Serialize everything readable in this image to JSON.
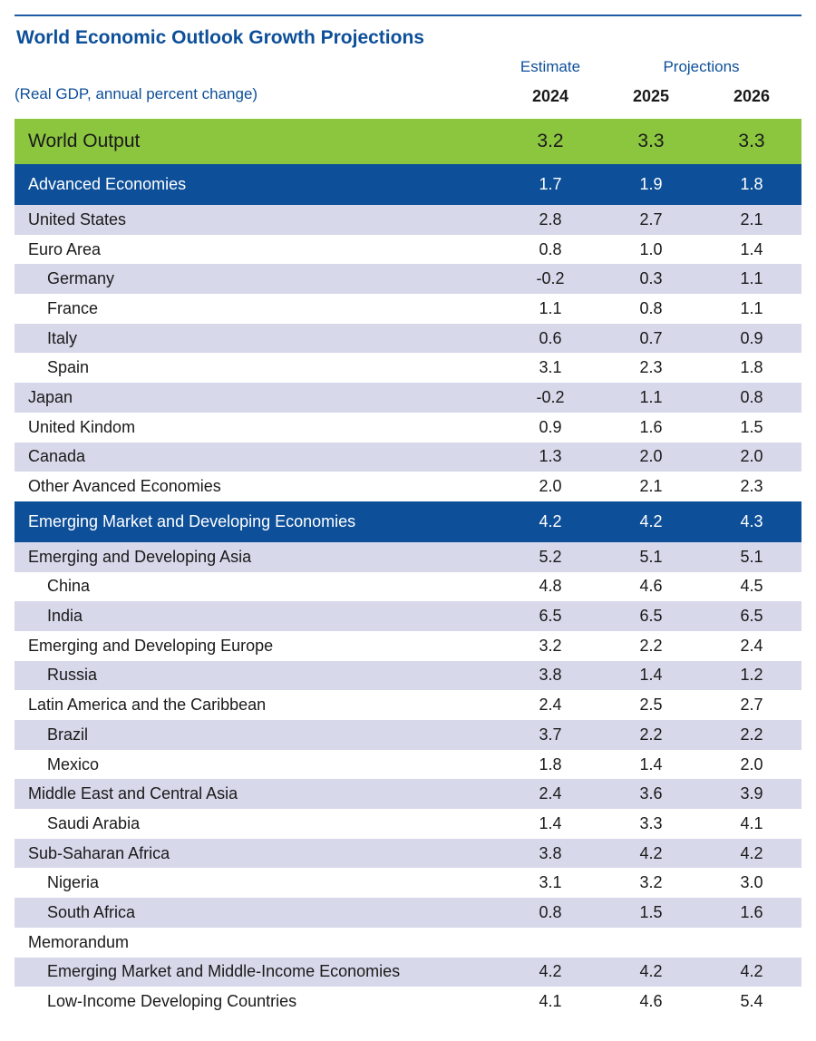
{
  "title": "World Economic Outlook Growth Projections",
  "subtitle": "(Real GDP, annual percent change)",
  "header": {
    "estimate_label": "Estimate",
    "projections_label": "Projections",
    "years": [
      "2024",
      "2025",
      "2026"
    ]
  },
  "rows": [
    {
      "name": "World Output",
      "kind": "world",
      "values": [
        "3.2",
        "3.3",
        "3.3"
      ]
    },
    {
      "name": "Advanced Economies",
      "kind": "group",
      "values": [
        "1.7",
        "1.9",
        "1.8"
      ]
    },
    {
      "name": "United States",
      "kind": "alt",
      "indent": 0,
      "values": [
        "2.8",
        "2.7",
        "2.1"
      ]
    },
    {
      "name": "Euro Area",
      "kind": "plain",
      "indent": 0,
      "values": [
        "0.8",
        "1.0",
        "1.4"
      ]
    },
    {
      "name": "Germany",
      "kind": "alt",
      "indent": 1,
      "values": [
        "-0.2",
        "0.3",
        "1.1"
      ]
    },
    {
      "name": "France",
      "kind": "plain",
      "indent": 1,
      "values": [
        "1.1",
        "0.8",
        "1.1"
      ]
    },
    {
      "name": "Italy",
      "kind": "alt",
      "indent": 1,
      "values": [
        "0.6",
        "0.7",
        "0.9"
      ]
    },
    {
      "name": "Spain",
      "kind": "plain",
      "indent": 1,
      "values": [
        "3.1",
        "2.3",
        "1.8"
      ]
    },
    {
      "name": "Japan",
      "kind": "alt",
      "indent": 0,
      "values": [
        "-0.2",
        "1.1",
        "0.8"
      ]
    },
    {
      "name": "United Kindom",
      "kind": "plain",
      "indent": 0,
      "values": [
        "0.9",
        "1.6",
        "1.5"
      ]
    },
    {
      "name": "Canada",
      "kind": "alt",
      "indent": 0,
      "values": [
        "1.3",
        "2.0",
        "2.0"
      ]
    },
    {
      "name": "Other Avanced Economies",
      "kind": "plain",
      "indent": 0,
      "values": [
        "2.0",
        "2.1",
        "2.3"
      ]
    },
    {
      "name": "Emerging Market and Developing Economies",
      "kind": "group",
      "values": [
        "4.2",
        "4.2",
        "4.3"
      ]
    },
    {
      "name": "Emerging and Developing Asia",
      "kind": "alt",
      "indent": 0,
      "values": [
        "5.2",
        "5.1",
        "5.1"
      ]
    },
    {
      "name": "China",
      "kind": "plain",
      "indent": 1,
      "values": [
        "4.8",
        "4.6",
        "4.5"
      ]
    },
    {
      "name": "India",
      "kind": "alt",
      "indent": 1,
      "values": [
        "6.5",
        "6.5",
        "6.5"
      ]
    },
    {
      "name": "Emerging and Developing Europe",
      "kind": "plain",
      "indent": 0,
      "values": [
        "3.2",
        "2.2",
        "2.4"
      ]
    },
    {
      "name": "Russia",
      "kind": "alt",
      "indent": 1,
      "values": [
        "3.8",
        "1.4",
        "1.2"
      ]
    },
    {
      "name": "Latin America and the Caribbean",
      "kind": "plain",
      "indent": 0,
      "values": [
        "2.4",
        "2.5",
        "2.7"
      ]
    },
    {
      "name": "Brazil",
      "kind": "alt",
      "indent": 1,
      "values": [
        "3.7",
        "2.2",
        "2.2"
      ]
    },
    {
      "name": "Mexico",
      "kind": "plain",
      "indent": 1,
      "values": [
        "1.8",
        "1.4",
        "2.0"
      ]
    },
    {
      "name": "Middle East and Central Asia",
      "kind": "alt",
      "indent": 0,
      "values": [
        "2.4",
        "3.6",
        "3.9"
      ]
    },
    {
      "name": "Saudi Arabia",
      "kind": "plain",
      "indent": 1,
      "values": [
        "1.4",
        "3.3",
        "4.1"
      ]
    },
    {
      "name": "Sub-Saharan Africa",
      "kind": "alt",
      "indent": 0,
      "values": [
        "3.8",
        "4.2",
        "4.2"
      ]
    },
    {
      "name": "Nigeria",
      "kind": "plain",
      "indent": 1,
      "values": [
        "3.1",
        "3.2",
        "3.0"
      ]
    },
    {
      "name": "South Africa",
      "kind": "alt",
      "indent": 1,
      "values": [
        "0.8",
        "1.5",
        "1.6"
      ]
    },
    {
      "name": "Memorandum",
      "kind": "plain",
      "indent": 0,
      "values": [
        "",
        "",
        ""
      ]
    },
    {
      "name": "Emerging Market and Middle-Income Economies",
      "kind": "alt",
      "indent": 1,
      "values": [
        "4.2",
        "4.2",
        "4.2"
      ]
    },
    {
      "name": "Low-Income Developing Countries",
      "kind": "plain",
      "indent": 1,
      "values": [
        "4.1",
        "4.6",
        "5.4"
      ]
    }
  ],
  "colors": {
    "title": "#0d4f99",
    "world_band": "#8cc63f",
    "group_band": "#0d4f99",
    "alt_band": "#d7d8ea"
  }
}
